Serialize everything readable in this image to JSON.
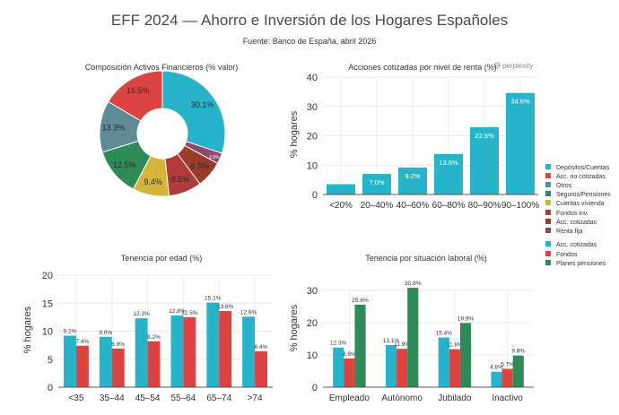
{
  "page": {
    "title": "EFF 2024 — Ahorro e Inversión de los Hogares Españoles",
    "subtitle": "Fuente: Banco de España, abril 2026",
    "watermark": "perplexity"
  },
  "colors": {
    "teal": "#27b4cb",
    "red": "#dc4444",
    "slate": "#5f8a96",
    "green": "#2e8b57",
    "mustard": "#d4b43a",
    "darkred": "#b23b3b",
    "brown": "#9b3c28",
    "purple": "#8b4a6b",
    "grid": "#e8e8e8",
    "text": "#333333"
  },
  "legends": [
    {
      "label": "Depósitos/Cuentas",
      "color": "#27b4cb"
    },
    {
      "label": "Acc. no cotizadas",
      "color": "#dc4444"
    },
    {
      "label": "Otros",
      "color": "#5f8a96"
    },
    {
      "label": "Seguros/Pensiones",
      "color": "#2e8b57"
    },
    {
      "label": "Cuentas vivienda",
      "color": "#d4b43a"
    },
    {
      "label": "Fondos inv.",
      "color": "#b23b3b"
    },
    {
      "label": "Acc. cotizadas",
      "color": "#9b3c28"
    },
    {
      "label": "Renta fija",
      "color": "#8b4a6b"
    },
    {
      "label": "Acc. cotizadas",
      "color": "#27b4cb"
    },
    {
      "label": "Fondos",
      "color": "#dc4444"
    },
    {
      "label": "Planes pensiones",
      "color": "#2e8b57"
    }
  ],
  "chart_data": [
    {
      "type": "pie",
      "title": "Composición Activos Financieros (% valor)",
      "labels": [
        "Depósitos/Cuentas",
        "Renta fija",
        "Acc. cotizadas",
        "Fondos inv.",
        "Cuentas vivienda",
        "Seguros/Pensiones",
        "Otros",
        "Acc. no cotizadas"
      ],
      "values": [
        30.1,
        2.8,
        6.9,
        8.5,
        9.4,
        12.5,
        13.3,
        16.5
      ],
      "value_labels": [
        "30.1%",
        "2.8%",
        "6.9%",
        "8.5%",
        "9.4%",
        "12.5%",
        "13.3%",
        "16.5%"
      ],
      "colors": [
        "#27b4cb",
        "#8b4a6b",
        "#9b3c28",
        "#b23b3b",
        "#d4b43a",
        "#2e8b57",
        "#5f8a96",
        "#dc4444"
      ],
      "donut": true
    },
    {
      "type": "bar",
      "title": "Acciones cotizadas por nivel de renta (%)",
      "ylabel": "% hogares",
      "categories": [
        "<20%",
        "20–40%",
        "40–60%",
        "60–80%",
        "80–90%",
        "90–100%"
      ],
      "values": [
        3.5,
        7.0,
        9.2,
        13.8,
        22.9,
        34.6
      ],
      "value_labels": [
        "",
        "7.0%",
        "9.2%",
        "13.8%",
        "22.9%",
        "34.6%"
      ],
      "ylim": [
        0,
        40
      ],
      "yticks": [
        0,
        10,
        20,
        30,
        40
      ],
      "color": "#27b4cb",
      "grid": true
    },
    {
      "type": "bar",
      "title": "Tenencia por edad (%)",
      "ylabel": "% hogares",
      "categories": [
        "<35",
        "35–44",
        "45–54",
        "55–64",
        "65–74",
        ">74"
      ],
      "series": [
        {
          "values": [
            9.2,
            9.0,
            12.3,
            12.8,
            15.1,
            12.6
          ],
          "labels": [
            "9.2%",
            "9.0%",
            "12.3%",
            "12.8%",
            "15.1%",
            "12.6%"
          ],
          "color": "#27b4cb"
        },
        {
          "values": [
            7.4,
            6.9,
            8.2,
            12.5,
            13.6,
            6.4
          ],
          "labels": [
            "7.4%",
            "6.9%",
            "8.2%",
            "12.5%",
            "13.6%",
            "6.4%"
          ],
          "color": "#dc4444"
        }
      ],
      "ylim": [
        0,
        20
      ],
      "yticks": [
        0,
        5,
        10,
        15,
        20
      ],
      "grid": true
    },
    {
      "type": "bar",
      "title": "Tenencia por situación laboral (%)",
      "ylabel": "% hogares",
      "categories": [
        "Empleado",
        "Autónomo",
        "Jubilado",
        "Inactivo"
      ],
      "series": [
        {
          "values": [
            12.3,
            13.1,
            15.4,
            4.8
          ],
          "labels": [
            "12.3%",
            "13.1%",
            "15.4%",
            "4.8%"
          ],
          "color": "#27b4cb"
        },
        {
          "values": [
            8.9,
            11.9,
            11.8,
            5.7
          ],
          "labels": [
            "8.9%",
            "11.9%",
            "11.8%",
            "5.7%"
          ],
          "color": "#dc4444"
        },
        {
          "values": [
            25.6,
            30.8,
            19.9,
            9.8
          ],
          "labels": [
            "25.6%",
            "30.8%",
            "19.9%",
            "9.8%"
          ],
          "color": "#2e8b57"
        }
      ],
      "ylim": [
        0,
        30
      ],
      "yticks": [
        0,
        10,
        20,
        30
      ],
      "grid": true
    }
  ]
}
